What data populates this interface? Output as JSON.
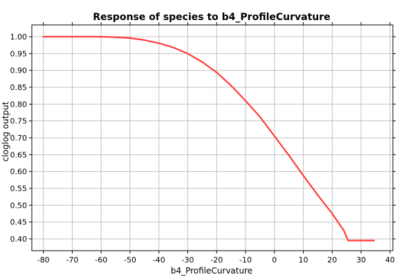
{
  "chart_data": {
    "type": "line",
    "title": "Response of species to b4_ProfileCurvature",
    "xlabel": "b4_ProfileCurvature",
    "ylabel": "cloglog output",
    "xlim": [
      -84,
      41
    ],
    "ylim": [
      0.365,
      1.035
    ],
    "x_ticks": [
      -80,
      -70,
      -60,
      -50,
      -40,
      -30,
      -20,
      -10,
      0,
      10,
      20,
      30,
      40
    ],
    "y_ticks": [
      1.0,
      0.95,
      0.9,
      0.85,
      0.8,
      0.75,
      0.7,
      0.65,
      0.6,
      0.55,
      0.5,
      0.45,
      0.4
    ],
    "grid": true,
    "series": [
      {
        "color": "#ff3b3b",
        "x": [
          -80,
          -70,
          -60,
          -56,
          -50,
          -45,
          -40,
          -35,
          -30,
          -25,
          -20,
          -15,
          -10,
          -5,
          0,
          5,
          10,
          15,
          20,
          24,
          25.5,
          34.5
        ],
        "y": [
          1.0,
          1.0,
          1.0,
          0.999,
          0.996,
          0.99,
          0.981,
          0.968,
          0.95,
          0.925,
          0.894,
          0.855,
          0.81,
          0.762,
          0.705,
          0.648,
          0.588,
          0.53,
          0.475,
          0.425,
          0.395,
          0.395
        ]
      }
    ]
  }
}
